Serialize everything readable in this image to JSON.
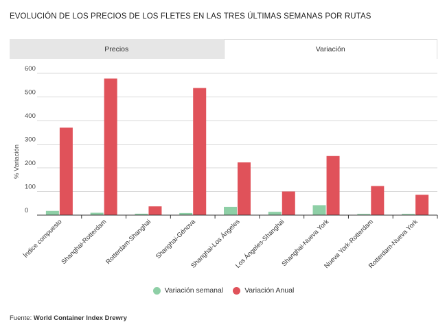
{
  "title": "EVOLUCIÓN DE LOS PRECIOS DE LOS FLETES EN LAS TRES ÚLTIMAS SEMANAS POR RUTAS",
  "tabs": [
    {
      "label": "Precios",
      "active": false
    },
    {
      "label": "Variación",
      "active": true
    }
  ],
  "source": {
    "prefix": "Fuente:",
    "name": "World Container Index Drewry"
  },
  "colors": {
    "semanal": "#8ecfa6",
    "anual": "#e0525a",
    "grid": "#d9d9d9",
    "axis": "#333333"
  },
  "chart_data": {
    "type": "bar",
    "title": "",
    "xlabel": "",
    "ylabel": "% Variación",
    "ylim": [
      0,
      600
    ],
    "yticks": [
      0,
      100,
      200,
      300,
      400,
      500,
      600
    ],
    "categories": [
      "Índice compuesto",
      "Shanghai-Rotterdam",
      "Rotterdam-Shanghai",
      "Shanghai-Génova",
      "Shanghai-Los Ángeles",
      "Los Ángeles-Shanghai",
      "Shanghai-Nueva York",
      "Nueva York-Rotterdam",
      "Rotterdam-Nueva York"
    ],
    "series": [
      {
        "name": "Variación semanal",
        "values": [
          18,
          10,
          6,
          9,
          35,
          14,
          42,
          5,
          5
        ]
      },
      {
        "name": "Variación Anual",
        "values": [
          370,
          578,
          37,
          538,
          223,
          100,
          250,
          123,
          86
        ]
      }
    ]
  }
}
